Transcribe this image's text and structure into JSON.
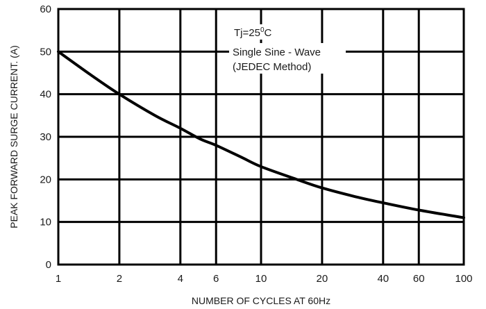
{
  "chart_data": {
    "type": "line",
    "title": "",
    "xlabel": "NUMBER OF CYCLES AT 60Hz",
    "ylabel": "PEAK FORWARD SURGE CURRENT. (A)",
    "x_scale": "log",
    "xlim": [
      1,
      100
    ],
    "ylim": [
      0,
      60
    ],
    "x_ticks": [
      1,
      2,
      4,
      6,
      10,
      20,
      40,
      60,
      100
    ],
    "y_ticks": [
      0,
      10,
      20,
      30,
      40,
      50,
      60
    ],
    "grid": true,
    "annotations": {
      "tj_prefix": "Tj=25",
      "tj_degree": "0",
      "tj_unit": "C",
      "line1": "Single Sine - Wave",
      "line2": "(JEDEC Method)"
    },
    "series": [
      {
        "x": [
          1,
          1.5,
          2,
          3,
          4,
          5,
          6,
          8,
          10,
          15,
          20,
          30,
          40,
          60,
          100
        ],
        "y": [
          50,
          44,
          40,
          35,
          32,
          29.5,
          28,
          25.2,
          23,
          20,
          18,
          15.8,
          14.5,
          12.8,
          11
        ]
      }
    ]
  }
}
